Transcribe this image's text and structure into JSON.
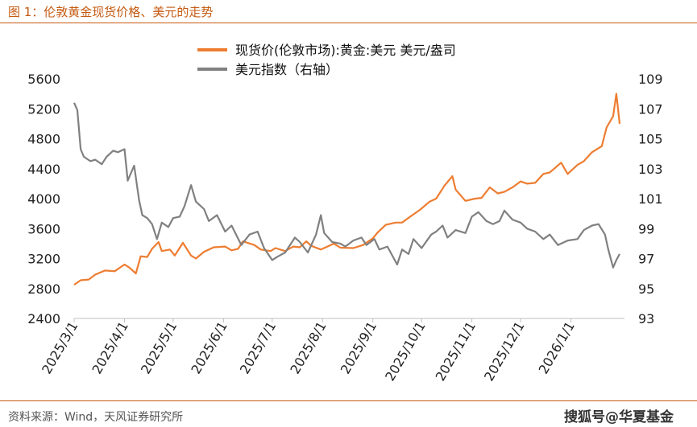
{
  "figure": {
    "title": "图 1：伦敦黄金现货价格、美元的走势",
    "source": "资料来源：Wind，天风证券研究所",
    "watermark": "搜狐号@华夏基金"
  },
  "chart_data": {
    "type": "line",
    "dual_axis": true,
    "x_tick_labels": [
      "2025/3/1",
      "2025/4/1",
      "2025/5/1",
      "2025/6/1",
      "2025/7/1",
      "2025/8/1",
      "2025/9/1",
      "2025/10/1",
      "2025/11/1",
      "2025/12/1",
      "2026/1/1"
    ],
    "x_range": [
      "2025-03-01",
      "2026-02-03"
    ],
    "y_left": {
      "ylim": [
        2400,
        5600
      ],
      "ticks": [
        2400,
        2800,
        3200,
        3600,
        4000,
        4400,
        4800,
        5200,
        5600
      ]
    },
    "y_right": {
      "ylim": [
        93,
        109
      ],
      "ticks": [
        93,
        95,
        97,
        99,
        101,
        103,
        105,
        107,
        109
      ]
    },
    "legend_position": "top-right",
    "series": [
      {
        "name": "现货价(伦敦市场):黄金:美元 美元/盎司",
        "axis": "left",
        "color": "#ed7d31",
        "points": [
          [
            "2025-03-01",
            2850
          ],
          [
            "2025-03-05",
            2910
          ],
          [
            "2025-03-10",
            2920
          ],
          [
            "2025-03-14",
            2985
          ],
          [
            "2025-03-20",
            3040
          ],
          [
            "2025-03-26",
            3030
          ],
          [
            "2025-04-01",
            3120
          ],
          [
            "2025-04-04",
            3080
          ],
          [
            "2025-04-08",
            3000
          ],
          [
            "2025-04-11",
            3230
          ],
          [
            "2025-04-15",
            3220
          ],
          [
            "2025-04-18",
            3330
          ],
          [
            "2025-04-22",
            3420
          ],
          [
            "2025-04-24",
            3300
          ],
          [
            "2025-04-29",
            3320
          ],
          [
            "2025-05-02",
            3240
          ],
          [
            "2025-05-07",
            3410
          ],
          [
            "2025-05-12",
            3240
          ],
          [
            "2025-05-15",
            3200
          ],
          [
            "2025-05-20",
            3290
          ],
          [
            "2025-05-26",
            3350
          ],
          [
            "2025-06-02",
            3360
          ],
          [
            "2025-06-06",
            3310
          ],
          [
            "2025-06-10",
            3330
          ],
          [
            "2025-06-13",
            3430
          ],
          [
            "2025-06-20",
            3380
          ],
          [
            "2025-06-24",
            3320
          ],
          [
            "2025-06-30",
            3300
          ],
          [
            "2025-07-03",
            3340
          ],
          [
            "2025-07-09",
            3300
          ],
          [
            "2025-07-14",
            3360
          ],
          [
            "2025-07-18",
            3350
          ],
          [
            "2025-07-22",
            3430
          ],
          [
            "2025-07-25",
            3370
          ],
          [
            "2025-07-31",
            3320
          ],
          [
            "2025-08-05",
            3370
          ],
          [
            "2025-08-08",
            3400
          ],
          [
            "2025-08-12",
            3345
          ],
          [
            "2025-08-20",
            3340
          ],
          [
            "2025-08-26",
            3380
          ],
          [
            "2025-09-01",
            3470
          ],
          [
            "2025-09-04",
            3550
          ],
          [
            "2025-09-09",
            3650
          ],
          [
            "2025-09-15",
            3680
          ],
          [
            "2025-09-19",
            3680
          ],
          [
            "2025-09-24",
            3760
          ],
          [
            "2025-09-30",
            3850
          ],
          [
            "2025-10-06",
            3960
          ],
          [
            "2025-10-10",
            4000
          ],
          [
            "2025-10-15",
            4170
          ],
          [
            "2025-10-20",
            4300
          ],
          [
            "2025-10-22",
            4120
          ],
          [
            "2025-10-28",
            3970
          ],
          [
            "2025-11-03",
            4000
          ],
          [
            "2025-11-07",
            4010
          ],
          [
            "2025-11-12",
            4150
          ],
          [
            "2025-11-17",
            4070
          ],
          [
            "2025-11-21",
            4090
          ],
          [
            "2025-11-26",
            4150
          ],
          [
            "2025-12-01",
            4230
          ],
          [
            "2025-12-05",
            4200
          ],
          [
            "2025-12-10",
            4210
          ],
          [
            "2025-12-15",
            4330
          ],
          [
            "2025-12-19",
            4350
          ],
          [
            "2025-12-26",
            4480
          ],
          [
            "2025-12-30",
            4330
          ],
          [
            "2026-01-05",
            4450
          ],
          [
            "2026-01-09",
            4500
          ],
          [
            "2026-01-14",
            4620
          ],
          [
            "2026-01-20",
            4700
          ],
          [
            "2026-01-23",
            4950
          ],
          [
            "2026-01-27",
            5100
          ],
          [
            "2026-01-29",
            5400
          ],
          [
            "2026-01-31",
            5000
          ]
        ]
      },
      {
        "name": "美元指数（右轴）",
        "axis": "right",
        "color": "#808080",
        "points": [
          [
            "2025-03-01",
            107.4
          ],
          [
            "2025-03-03",
            106.9
          ],
          [
            "2025-03-05",
            104.3
          ],
          [
            "2025-03-07",
            103.8
          ],
          [
            "2025-03-11",
            103.5
          ],
          [
            "2025-03-14",
            103.6
          ],
          [
            "2025-03-18",
            103.3
          ],
          [
            "2025-03-21",
            103.8
          ],
          [
            "2025-03-25",
            104.2
          ],
          [
            "2025-03-28",
            104.1
          ],
          [
            "2025-04-01",
            104.3
          ],
          [
            "2025-04-03",
            102.2
          ],
          [
            "2025-04-07",
            103.2
          ],
          [
            "2025-04-10",
            100.9
          ],
          [
            "2025-04-12",
            99.9
          ],
          [
            "2025-04-15",
            99.7
          ],
          [
            "2025-04-18",
            99.3
          ],
          [
            "2025-04-21",
            98.3
          ],
          [
            "2025-04-24",
            99.4
          ],
          [
            "2025-04-28",
            99.1
          ],
          [
            "2025-05-01",
            99.7
          ],
          [
            "2025-05-05",
            99.8
          ],
          [
            "2025-05-08",
            100.5
          ],
          [
            "2025-05-12",
            101.9
          ],
          [
            "2025-05-15",
            100.8
          ],
          [
            "2025-05-20",
            100.3
          ],
          [
            "2025-05-23",
            99.5
          ],
          [
            "2025-05-28",
            99.9
          ],
          [
            "2025-06-02",
            98.8
          ],
          [
            "2025-06-06",
            99.2
          ],
          [
            "2025-06-12",
            97.9
          ],
          [
            "2025-06-17",
            98.6
          ],
          [
            "2025-06-22",
            98.8
          ],
          [
            "2025-06-26",
            97.7
          ],
          [
            "2025-07-01",
            96.9
          ],
          [
            "2025-07-04",
            97.1
          ],
          [
            "2025-07-09",
            97.4
          ],
          [
            "2025-07-15",
            98.4
          ],
          [
            "2025-07-18",
            98.1
          ],
          [
            "2025-07-23",
            97.4
          ],
          [
            "2025-07-28",
            98.6
          ],
          [
            "2025-07-31",
            99.9
          ],
          [
            "2025-08-02",
            98.7
          ],
          [
            "2025-08-07",
            98.1
          ],
          [
            "2025-08-12",
            98.0
          ],
          [
            "2025-08-15",
            97.8
          ],
          [
            "2025-08-20",
            98.2
          ],
          [
            "2025-08-25",
            98.4
          ],
          [
            "2025-08-28",
            97.9
          ],
          [
            "2025-09-02",
            98.3
          ],
          [
            "2025-09-05",
            97.6
          ],
          [
            "2025-09-10",
            97.8
          ],
          [
            "2025-09-16",
            96.6
          ],
          [
            "2025-09-19",
            97.6
          ],
          [
            "2025-09-23",
            97.3
          ],
          [
            "2025-09-26",
            98.3
          ],
          [
            "2025-10-01",
            97.7
          ],
          [
            "2025-10-07",
            98.6
          ],
          [
            "2025-10-10",
            98.8
          ],
          [
            "2025-10-14",
            99.2
          ],
          [
            "2025-10-17",
            98.4
          ],
          [
            "2025-10-22",
            98.9
          ],
          [
            "2025-10-28",
            98.7
          ],
          [
            "2025-11-01",
            99.8
          ],
          [
            "2025-11-05",
            100.1
          ],
          [
            "2025-11-10",
            99.5
          ],
          [
            "2025-11-14",
            99.3
          ],
          [
            "2025-11-18",
            99.5
          ],
          [
            "2025-11-21",
            100.2
          ],
          [
            "2025-11-26",
            99.6
          ],
          [
            "2025-12-01",
            99.4
          ],
          [
            "2025-12-05",
            99.0
          ],
          [
            "2025-12-10",
            98.8
          ],
          [
            "2025-12-15",
            98.3
          ],
          [
            "2025-12-19",
            98.6
          ],
          [
            "2025-12-24",
            97.9
          ],
          [
            "2025-12-30",
            98.2
          ],
          [
            "2026-01-05",
            98.3
          ],
          [
            "2026-01-09",
            98.9
          ],
          [
            "2026-01-14",
            99.2
          ],
          [
            "2026-01-18",
            99.3
          ],
          [
            "2026-01-22",
            98.6
          ],
          [
            "2026-01-24",
            97.6
          ],
          [
            "2026-01-27",
            96.4
          ],
          [
            "2026-01-29",
            96.9
          ],
          [
            "2026-01-31",
            97.3
          ]
        ]
      }
    ]
  }
}
